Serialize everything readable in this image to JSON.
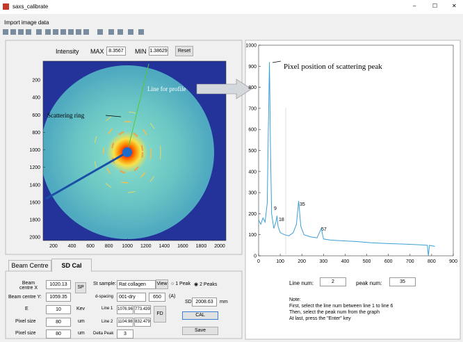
{
  "window": {
    "title": "saxs_calibrate",
    "controls": [
      "–",
      "☐",
      "✕"
    ]
  },
  "menu": [
    "Import image data"
  ],
  "image_panel": {
    "intensity_label": "Intensity",
    "max_label": "MAX",
    "max_value": "8.3567",
    "min_label": "MIN",
    "min_value": "1.38629",
    "reset": "Reset",
    "xticks": [
      200,
      400,
      600,
      800,
      1000,
      1200,
      1400,
      1600,
      1800,
      2000
    ],
    "yticks": [
      200,
      400,
      600,
      800,
      1000,
      1200,
      1400,
      1600,
      1800,
      2000
    ],
    "line_annotation": "Line for profile",
    "ring_annotation": "Scattering ring"
  },
  "tabs": [
    "Beam Centre",
    "SD Cal"
  ],
  "sd_cal": {
    "beam_x_label": "Beam centre X",
    "beam_x": "1020.13",
    "sp": "SP",
    "beam_y_label": "Beam centre Y:",
    "beam_y": "1059.35",
    "e_label": "E",
    "e": "10",
    "e_unit": "Kev",
    "pixel_label_1": "Pixel size",
    "pixel_1": "80",
    "pixel_unit_1": "um",
    "pixel_label_2": "Pixel size",
    "pixel_2": "80",
    "pixel_unit_2": "um",
    "sample_label": "St sample:",
    "sample": "Rat collagen",
    "view": "View",
    "peak_1": "1 Peak",
    "peak_2": "2 Peaks",
    "d_label": "d-spacing",
    "d_select": "001-dry",
    "d_value": "650",
    "d_unit": "(A)",
    "line1_label": "Line 1",
    "line1_a": "1076.96",
    "line1_b": "773.439",
    "line2_label": "Line 2",
    "line2_a": "1104.98",
    "line2_b": "832.479",
    "fd": "FD",
    "delta_label": "Delta Peak",
    "delta": "3",
    "sd_label": "SD",
    "sd": "2008.63",
    "sd_unit": "mm",
    "cal": "CAL",
    "save": "Save"
  },
  "profile_plot": {
    "type": "line",
    "color": "#3a9fd6",
    "annotation": "Pixel position of scattering peak",
    "x": [
      0,
      10,
      20,
      30,
      40,
      45,
      50,
      55,
      60,
      70,
      80,
      85,
      90,
      100,
      120,
      140,
      160,
      175,
      185,
      195,
      210,
      240,
      270,
      290,
      300,
      330,
      380,
      450,
      520,
      600,
      680,
      750,
      780,
      785,
      790,
      800,
      815
    ],
    "values": [
      170,
      150,
      180,
      160,
      250,
      600,
      920,
      500,
      200,
      130,
      160,
      190,
      140,
      110,
      100,
      95,
      110,
      150,
      260,
      140,
      100,
      90,
      85,
      130,
      80,
      75,
      72,
      68,
      62,
      58,
      55,
      52,
      50,
      0,
      50,
      48,
      45
    ],
    "xlim": [
      0,
      900
    ],
    "ylim": [
      0,
      1000
    ],
    "xticks": [
      0,
      100,
      200,
      300,
      400,
      500,
      600,
      700,
      800,
      900
    ],
    "yticks": [
      0,
      100,
      200,
      300,
      400,
      500,
      600,
      700,
      800,
      900,
      1000
    ],
    "peak_labels": [
      "9",
      "18",
      "35",
      "57"
    ]
  },
  "selection": {
    "line_label": "Line num:",
    "line": "2",
    "peak_label": "peak num:",
    "peak": "35"
  },
  "note": [
    "Note:",
    "First, select the line num between line 1 to line 6",
    "Then,  select the peak num from the graph",
    "At last, press the \"Enter\" key"
  ]
}
